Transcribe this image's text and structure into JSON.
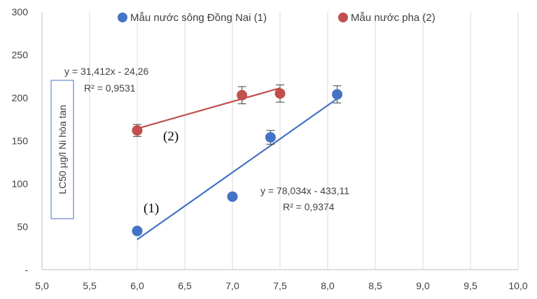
{
  "chart_data": {
    "type": "scatter",
    "title": "",
    "xlabel": "",
    "ylabel": "LC50 µg/l Ni  hòa tan",
    "xlim": [
      5.0,
      10.0
    ],
    "ylim": [
      0,
      300
    ],
    "x_ticks": [
      5.0,
      5.5,
      6.0,
      6.5,
      7.0,
      7.5,
      8.0,
      8.5,
      9.0,
      9.5,
      10.0
    ],
    "x_tick_labels": [
      "5,0",
      "5,5",
      "6,0",
      "6,5",
      "7,0",
      "7,5",
      "8,0",
      "8,5",
      "9,0",
      "9,5",
      "10,0"
    ],
    "y_ticks": [
      0,
      50,
      100,
      150,
      200,
      250,
      300
    ],
    "y_tick_labels": [
      "-",
      "50",
      "100",
      "150",
      "200",
      "250",
      "300"
    ],
    "grid": "vertical",
    "legend_position": "top",
    "series": [
      {
        "name": "Mẫu nước sông Đồng Nai (1)",
        "color": "#4472C4",
        "points": [
          {
            "x": 6.0,
            "y": 45,
            "err": 0
          },
          {
            "x": 7.0,
            "y": 85,
            "err": 0
          },
          {
            "x": 7.4,
            "y": 154,
            "err": 8
          },
          {
            "x": 8.1,
            "y": 204,
            "err": 10
          }
        ],
        "trendline": {
          "x1": 6.0,
          "x2": 8.1,
          "slope": 78.034,
          "intercept": -433.11
        },
        "equation": "y = 78,034x - 433,11",
        "r2": "R² = 0,9374",
        "curve_label": "(1)"
      },
      {
        "name": "Mẫu nước pha (2)",
        "color": "#C0504D",
        "points": [
          {
            "x": 6.0,
            "y": 162,
            "err": 7
          },
          {
            "x": 7.1,
            "y": 203,
            "err": 10
          },
          {
            "x": 7.5,
            "y": 205,
            "err": 10
          }
        ],
        "trendline": {
          "x1": 6.0,
          "x2": 7.5,
          "slope": 31.412,
          "intercept": -24.26
        },
        "equation": "y = 31,412x - 24,26",
        "r2": "R² = 0,9531",
        "curve_label": "(2)"
      }
    ]
  }
}
